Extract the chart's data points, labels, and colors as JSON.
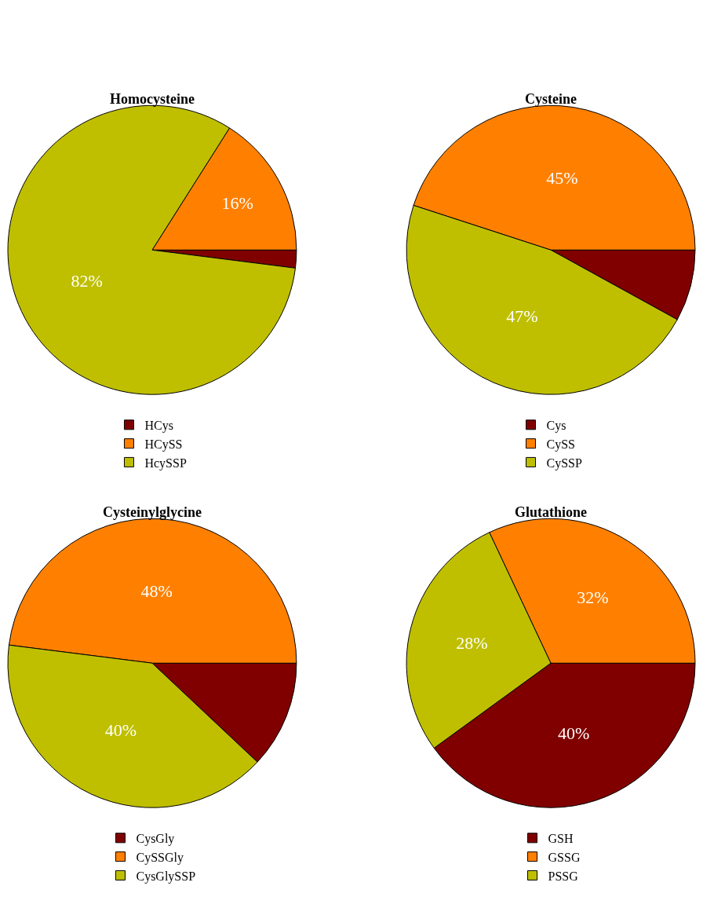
{
  "chart_data": [
    {
      "type": "pie",
      "title": "Homocysteine",
      "categories": [
        "HCys",
        "HCySS",
        "HcySSP"
      ],
      "values": [
        2,
        16,
        82
      ],
      "colors": [
        "#800000",
        "#ff8000",
        "#bfbf00"
      ],
      "value_labels": [
        null,
        "16%",
        "82%"
      ],
      "legend": "bottom"
    },
    {
      "type": "pie",
      "title": "Cysteine",
      "categories": [
        "Cys",
        "CySS",
        "CySSP"
      ],
      "values": [
        8,
        45,
        47
      ],
      "colors": [
        "#800000",
        "#ff8000",
        "#bfbf00"
      ],
      "value_labels": [
        null,
        "45%",
        "47%"
      ],
      "legend": "bottom"
    },
    {
      "type": "pie",
      "title": "Cysteinylglycine",
      "categories": [
        "CysGly",
        "CySSGly",
        "CysGlySSP"
      ],
      "values": [
        12,
        48,
        40
      ],
      "colors": [
        "#800000",
        "#ff8000",
        "#bfbf00"
      ],
      "value_labels": [
        null,
        "48%",
        "40%"
      ],
      "legend": "bottom"
    },
    {
      "type": "pie",
      "title": "Glutathione",
      "categories": [
        "GSH",
        "GSSG",
        "PSSG"
      ],
      "values": [
        40,
        32,
        28
      ],
      "colors": [
        "#800000",
        "#ff8000",
        "#bfbf00"
      ],
      "value_labels": [
        "40%",
        "32%",
        "28%"
      ],
      "legend": "bottom"
    }
  ]
}
